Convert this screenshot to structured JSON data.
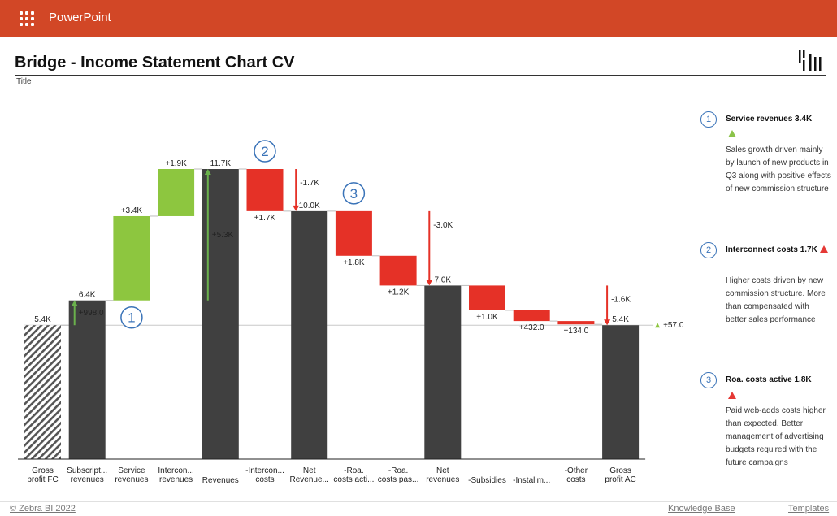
{
  "app": {
    "name": "PowerPoint",
    "menu_icon": "waffle-icon",
    "bar_color": "#d24726"
  },
  "header": {
    "title": "Bridge - Income Statement Chart CV",
    "subtitle": "Title",
    "logo_icon": "zebra-bi-logo-icon"
  },
  "chart_data": {
    "type": "waterfall",
    "colors": {
      "total": "#404040",
      "increase": "#8dc63f",
      "decrease": "#e53127",
      "hatched": "#555555",
      "arrow_up": "#6ab04c",
      "arrow_down": "#e53127"
    },
    "bars": [
      {
        "label": "Gross profit FC",
        "kind": "hatched",
        "from": 0,
        "to": 5.4,
        "value_label": "5.4K"
      },
      {
        "label": "Subscript... revenues",
        "kind": "total",
        "from": 0,
        "to": 6.4,
        "value_label": "6.4K",
        "delta_label": "+998.0",
        "arrow": "up",
        "arrow_from": 5.4,
        "arrow_to": 6.4
      },
      {
        "label": "Service revenues",
        "kind": "increase",
        "from": 6.4,
        "to": 9.8,
        "value_label": "+3.4K"
      },
      {
        "label": "Intercon... revenues",
        "kind": "increase",
        "from": 9.8,
        "to": 11.7,
        "value_label": "+1.9K"
      },
      {
        "label": "Revenues",
        "kind": "total",
        "from": 0,
        "to": 11.7,
        "value_label": "11.7K",
        "delta_label": "+5.3K",
        "arrow": "up",
        "arrow_from": 6.4,
        "arrow_to": 11.7
      },
      {
        "label": "-Intercon... costs",
        "kind": "decrease",
        "from": 11.7,
        "to": 10.0,
        "value_label": "+1.7K"
      },
      {
        "label": "Net Revenue...",
        "kind": "total",
        "from": 0,
        "to": 10.0,
        "value_label": "10.0K",
        "delta_label": "-1.7K",
        "arrow": "down",
        "arrow_from": 11.7,
        "arrow_to": 10.0
      },
      {
        "label": "-Roa. costs acti...",
        "kind": "decrease",
        "from": 10.0,
        "to": 8.2,
        "value_label": "+1.8K"
      },
      {
        "label": "-Roa. costs pas...",
        "kind": "decrease",
        "from": 8.2,
        "to": 7.0,
        "value_label": "+1.2K"
      },
      {
        "label": "Net revenues",
        "kind": "total",
        "from": 0,
        "to": 7.0,
        "value_label": "7.0K",
        "delta_label": "-3.0K",
        "arrow": "down",
        "arrow_from": 10.0,
        "arrow_to": 7.0
      },
      {
        "label": "-Subsidies",
        "kind": "decrease",
        "from": 7.0,
        "to": 6.0,
        "value_label": "+1.0K"
      },
      {
        "label": "-Installm...",
        "kind": "decrease",
        "from": 6.0,
        "to": 5.568,
        "value_label": "+432.0"
      },
      {
        "label": "-Other costs",
        "kind": "decrease",
        "from": 5.568,
        "to": 5.434,
        "value_label": "+134.0"
      },
      {
        "label": "Gross profit AC",
        "kind": "total",
        "from": 0,
        "to": 5.4,
        "value_label": "5.4K",
        "delta_label": "-1.6K",
        "arrow": "down",
        "arrow_from": 7.0,
        "arrow_to": 5.4
      }
    ],
    "reference": {
      "value": 5.4,
      "delta_label": "+57.0"
    },
    "callouts": [
      {
        "number": "1",
        "bar_index": 2
      },
      {
        "number": "2",
        "bar_index": 5
      },
      {
        "number": "3",
        "bar_index": 7
      }
    ],
    "ylim": [
      0,
      11.7
    ]
  },
  "notes": [
    {
      "number": "1",
      "title": "Service revenues 3.4K",
      "marker": "green-up-triangle-icon",
      "body": "Sales growth driven mainly by launch of new products in Q3 along with positive effects of new commission structure"
    },
    {
      "number": "2",
      "title": "Interconnect costs 1.7K",
      "marker": "red-up-triangle-icon",
      "body": "Higher costs driven by new commission structure. More than compensated with better sales performance"
    },
    {
      "number": "3",
      "title": "Roa. costs active 1.8K",
      "marker": "red-up-triangle-icon",
      "body": "Paid web-adds costs higher than expected. Better management of advertising budgets required with the future campaigns"
    }
  ],
  "footer": {
    "copyright": "© Zebra BI 2022",
    "knowledge_base": "Knowledge Base",
    "templates": "Templates"
  }
}
